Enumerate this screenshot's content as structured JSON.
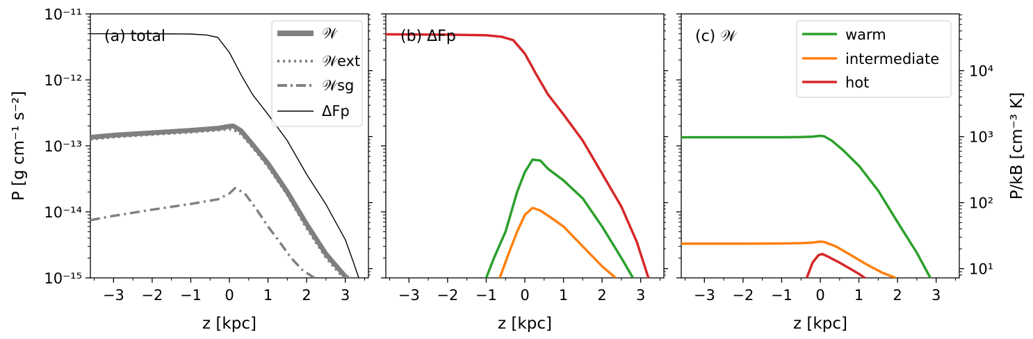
{
  "chart_data": [
    {
      "type": "line",
      "panel_title": "(a) total",
      "xlabel": "z [kpc]",
      "ylabel": "P [g cm⁻¹ s⁻²]",
      "y_scale": "log",
      "xlim": [
        -3.6,
        3.6
      ],
      "ylim": [
        1e-15,
        1e-11
      ],
      "x_ticks": [
        "−3",
        "−2",
        "−1",
        "0",
        "1",
        "2",
        "3"
      ],
      "y_ticks": [
        "10⁻¹¹",
        "10⁻¹²",
        "10⁻¹³",
        "10⁻¹⁴",
        "10⁻¹⁵"
      ],
      "legend": {
        "placement": "top-right"
      },
      "series": [
        {
          "name": "𝒲",
          "color": "#808080",
          "style": "solid-thick",
          "x": [
            -3.6,
            -3,
            -2,
            -1,
            -0.3,
            0,
            0.1,
            0.3,
            0.6,
            1,
            1.5,
            2,
            2.5,
            3,
            3.05
          ],
          "y": [
            1.35e-13,
            1.45e-13,
            1.58e-13,
            1.72e-13,
            1.85e-13,
            1.98e-13,
            2e-13,
            1.7e-13,
            1.05e-13,
            5.4e-14,
            2e-14,
            6.5e-15,
            2.3e-15,
            1.05e-15,
            1e-15
          ]
        },
        {
          "name": "𝒲ext",
          "color": "#808080",
          "style": "dotted",
          "x": [
            -3.6,
            -3,
            -2,
            -1,
            -0.3,
            0,
            0.1,
            0.3,
            0.6,
            1,
            1.5,
            2,
            2.5,
            2.95
          ],
          "y": [
            1.25e-13,
            1.35e-13,
            1.48e-13,
            1.6e-13,
            1.72e-13,
            1.78e-13,
            1.75e-13,
            1.5e-13,
            9.5e-14,
            4.8e-14,
            1.8e-14,
            5.6e-15,
            2e-15,
            1e-15
          ]
        },
        {
          "name": "𝒲sg",
          "color": "#808080",
          "style": "dashdot",
          "x": [
            -3.6,
            -3,
            -2,
            -1,
            -0.3,
            0,
            0.15,
            0.4,
            0.7,
            1,
            1.3,
            1.6,
            1.9,
            2.2
          ],
          "y": [
            7.5e-15,
            8.7e-15,
            1.08e-14,
            1.32e-14,
            1.55e-14,
            1.9e-14,
            2.3e-14,
            1.9e-14,
            1.1e-14,
            6e-15,
            3.5e-15,
            2e-15,
            1.3e-15,
            1e-15
          ]
        },
        {
          "name": "ΔFp",
          "color": "#000000",
          "style": "solid-thin",
          "x": [
            -3.6,
            -3,
            -2,
            -1,
            -0.6,
            -0.3,
            0,
            0.3,
            0.6,
            1,
            1.5,
            2,
            2.5,
            3,
            3.2,
            3.35
          ],
          "y": [
            5e-12,
            5e-12,
            5e-12,
            4.95e-12,
            4.8e-12,
            4.4e-12,
            2.6e-12,
            1.2e-12,
            6e-13,
            3e-13,
            1.2e-13,
            3.7e-14,
            1.3e-14,
            3.8e-15,
            1.8e-15,
            1e-15
          ]
        }
      ]
    },
    {
      "type": "line",
      "panel_title": "(b) ΔFp",
      "xlabel": "z [kpc]",
      "y_scale": "log",
      "xlim": [
        -3.6,
        3.6
      ],
      "ylim": [
        1e-15,
        1e-11
      ],
      "x_ticks": [
        "−3",
        "−2",
        "−1",
        "0",
        "1",
        "2",
        "3"
      ],
      "series": [
        {
          "name": "",
          "color": "#d62728",
          "x": [
            -3.6,
            -2,
            -1,
            -0.6,
            -0.3,
            0,
            0.3,
            0.6,
            1,
            1.5,
            2,
            2.5,
            2.9,
            3.2
          ],
          "y": [
            4.9e-12,
            4.85e-12,
            4.75e-12,
            4.5e-12,
            4e-12,
            2.5e-12,
            1.2e-12,
            6e-13,
            3e-13,
            1.2e-13,
            3.8e-14,
            1.2e-14,
            3.5e-15,
            1e-15
          ]
        },
        {
          "name": "",
          "color": "#2ca02c",
          "x": [
            -1,
            -0.8,
            -0.5,
            -0.2,
            0,
            0.2,
            0.4,
            0.6,
            1,
            1.5,
            2,
            2.5,
            2.8
          ],
          "y": [
            1e-15,
            2e-15,
            5e-15,
            2e-14,
            4e-14,
            6.2e-14,
            6e-14,
            4.5e-14,
            3e-14,
            1.6e-14,
            6e-15,
            2e-15,
            1e-15
          ]
        },
        {
          "name": "",
          "color": "#ff7f0e",
          "x": [
            -0.65,
            -0.4,
            -0.2,
            0,
            0.2,
            0.4,
            0.7,
            1,
            1.5,
            2,
            2.35
          ],
          "y": [
            1e-15,
            2.5e-15,
            5e-15,
            9e-15,
            1.15e-14,
            1.05e-14,
            8e-15,
            6e-15,
            3e-15,
            1.5e-15,
            1e-15
          ]
        }
      ]
    },
    {
      "type": "line",
      "panel_title": "(c) 𝒲",
      "xlabel": "z [kpc]",
      "ylabel_right": "P/kB [cm⁻³ K]",
      "y_scale": "log",
      "xlim": [
        -3.6,
        3.6
      ],
      "ylim": [
        1e-15,
        1e-11
      ],
      "x_ticks": [
        "−3",
        "−2",
        "−1",
        "0",
        "1",
        "2",
        "3"
      ],
      "y_ticks_right": [
        "10⁴",
        "10³",
        "10²",
        "10¹"
      ],
      "legend": {
        "placement": "top-right"
      },
      "series": [
        {
          "name": "warm",
          "color": "#2ca02c",
          "x": [
            -3.6,
            -2,
            -1,
            -0.5,
            -0.2,
            0,
            0.1,
            0.3,
            0.6,
            1,
            1.5,
            2,
            2.5,
            2.85
          ],
          "y": [
            1.35e-13,
            1.35e-13,
            1.35e-13,
            1.36e-13,
            1.38e-13,
            1.42e-13,
            1.4e-13,
            1.2e-13,
            8.5e-14,
            5e-14,
            2.1e-14,
            7e-15,
            2.4e-15,
            1e-15
          ]
        },
        {
          "name": "intermediate",
          "color": "#ff7f0e",
          "x": [
            -3.6,
            -2,
            -1,
            -0.5,
            -0.2,
            0,
            0.1,
            0.4,
            0.8,
            1.2,
            1.6,
            1.95
          ],
          "y": [
            3.3e-15,
            3.3e-15,
            3.32e-15,
            3.36e-15,
            3.42e-15,
            3.55e-15,
            3.5e-15,
            3e-15,
            2.2e-15,
            1.6e-15,
            1.2e-15,
            1e-15
          ]
        },
        {
          "name": "hot",
          "color": "#d62728",
          "x": [
            -0.35,
            -0.2,
            -0.05,
            0.05,
            0.2,
            0.5,
            0.8,
            1.0,
            1.15
          ],
          "y": [
            1e-15,
            1.7e-15,
            2.2e-15,
            2.3e-15,
            2.1e-15,
            1.7e-15,
            1.35e-15,
            1.15e-15,
            1e-15
          ]
        }
      ]
    }
  ]
}
